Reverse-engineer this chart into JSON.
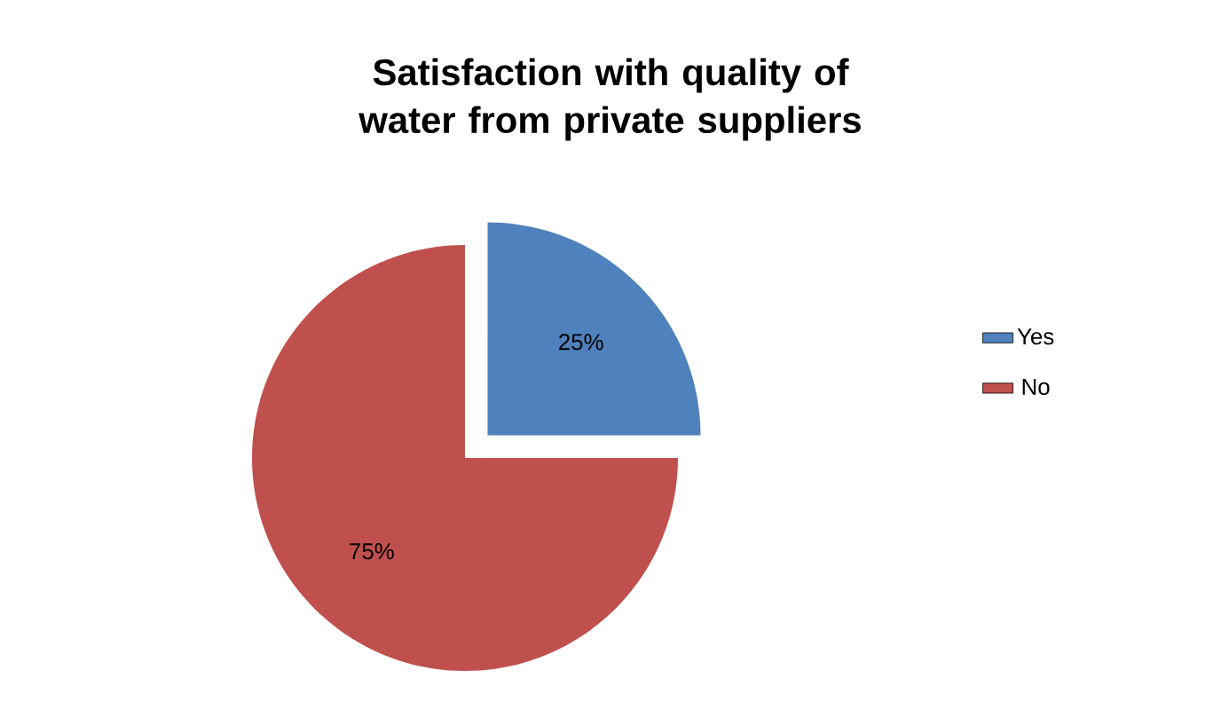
{
  "chart_data": {
    "type": "pie",
    "title": "Satisfaction with quality of water from private suppliers",
    "categories": [
      "Yes",
      "No"
    ],
    "values": [
      25,
      75
    ],
    "colors": [
      "#4f81bd",
      "#c0504d"
    ],
    "value_labels": [
      "25%",
      "75%"
    ],
    "legend": "right"
  }
}
